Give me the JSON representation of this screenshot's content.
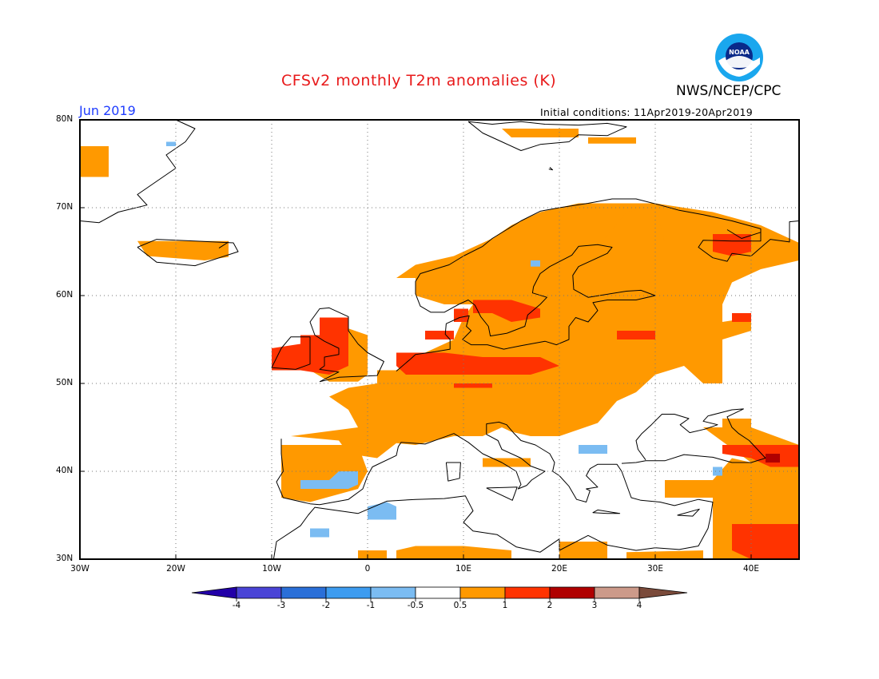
{
  "header": {
    "title": "CFSv2 monthly T2m anomalies (K)",
    "org": "NWS/NCEP/CPC",
    "month": "Jun 2019",
    "initial_conditions": "Initial conditions: 11Apr2019-20Apr2019",
    "logo_text": "NOAA"
  },
  "axes": {
    "lat_labels": [
      "80N",
      "70N",
      "60N",
      "50N",
      "40N",
      "30N"
    ],
    "lon_labels": [
      "30W",
      "20W",
      "10W",
      "0",
      "10E",
      "20E",
      "30E",
      "40E"
    ],
    "lon_range": [
      -30,
      45
    ],
    "lat_range": [
      30,
      80
    ],
    "grid": "dotted"
  },
  "colorbar": {
    "labels": [
      "-4",
      "-3",
      "-2",
      "-1",
      "-0.5",
      "0.5",
      "1",
      "2",
      "3",
      "4"
    ],
    "colors": [
      "#2200a8",
      "#4a44d6",
      "#2a6fd8",
      "#3d9cf0",
      "#7bbcf2",
      "#ffffff",
      "#ff9900",
      "#ff3300",
      "#b00000",
      "#cc9a8a",
      "#7a4a3a"
    ]
  }
}
